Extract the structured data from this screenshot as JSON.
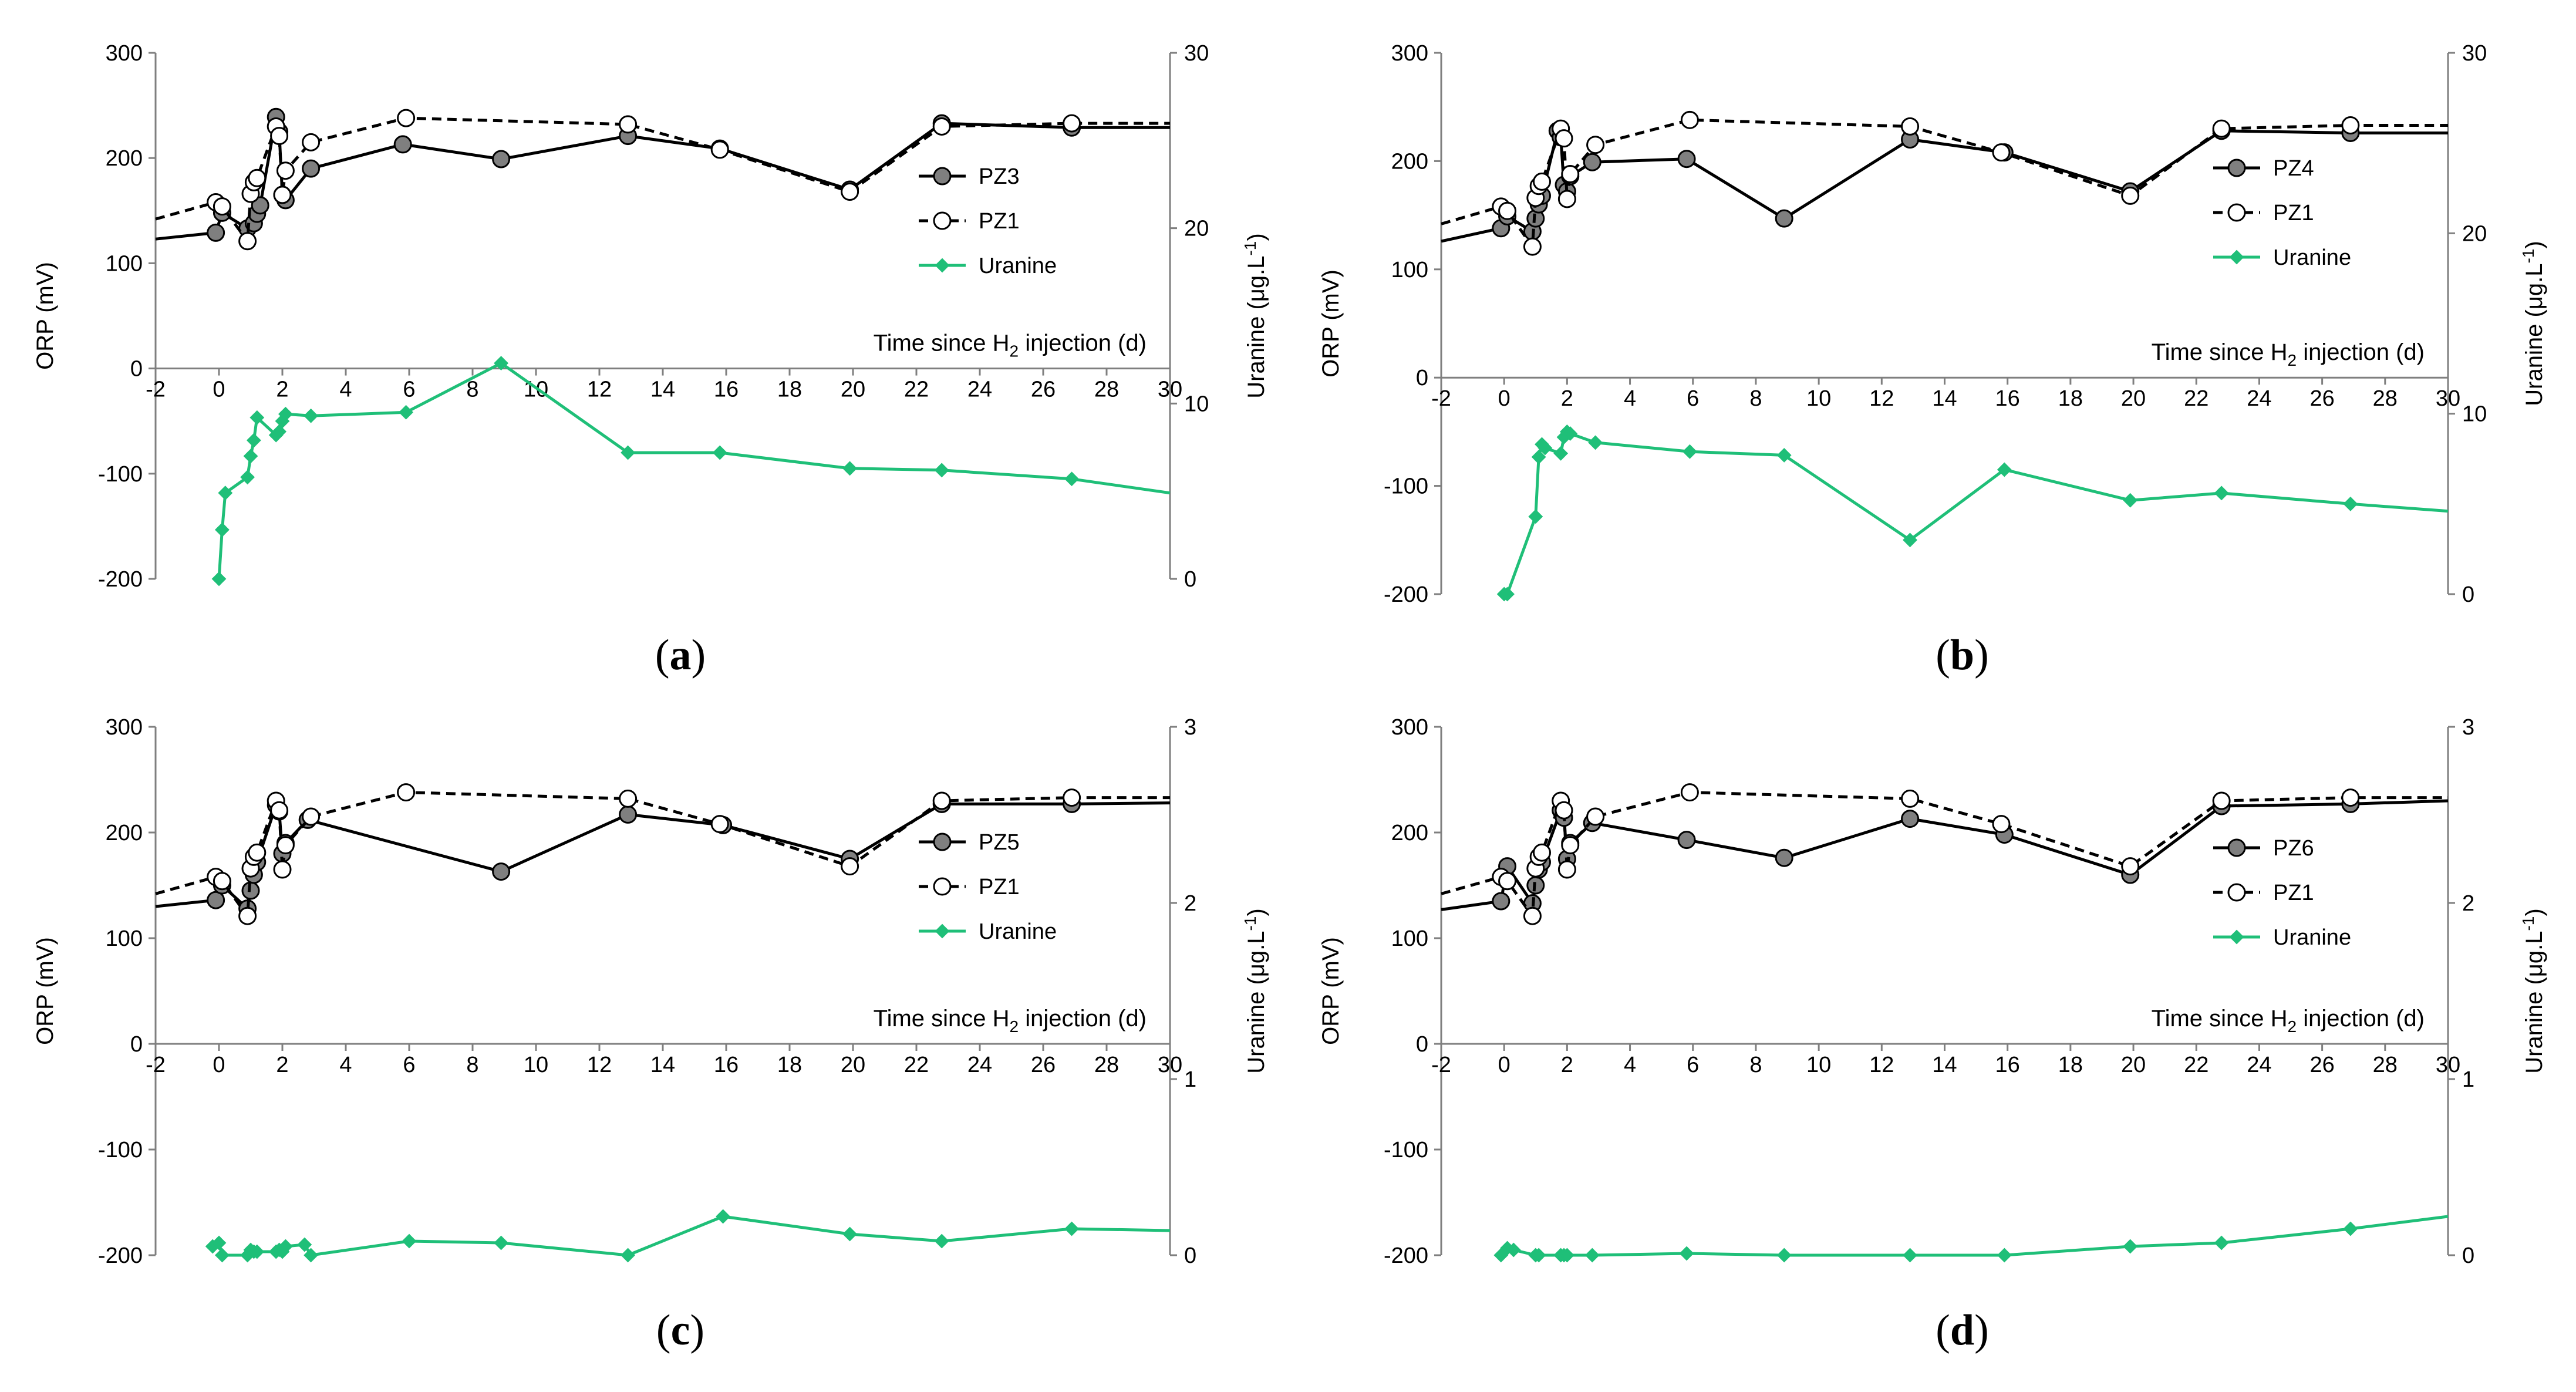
{
  "figure": {
    "colors": {
      "pz": "#000000",
      "pz_marker": "#7f7f7f",
      "pz1_marker": "#ffffff",
      "uranine": "#1fbf78",
      "axis": "#7f7f7f"
    }
  },
  "chart_data": [
    {
      "type": "line",
      "caption": "a",
      "xlabel": "Time since H",
      "xlabel_sub": "2",
      "xlabel_tail": " injection (d)",
      "ylabel": "ORP (mV)",
      "y2label": "Uranine (μg.L",
      "y2label_sup": "-1",
      "xlim": [
        -2,
        30
      ],
      "xticks": [
        "-2",
        "0",
        "2",
        "4",
        "6",
        "8",
        "10",
        "12",
        "14",
        "16",
        "18",
        "20",
        "22",
        "24",
        "26",
        "28",
        "30"
      ],
      "ylim": [
        -200,
        300
      ],
      "yticks": [
        "300",
        "200",
        "100",
        "0",
        "-100",
        "-200"
      ],
      "y2lim": [
        0,
        30
      ],
      "y2ticks": [
        "30",
        "20",
        "10",
        "0"
      ],
      "series": [
        {
          "name": "PZ3",
          "axis": "left",
          "style": "solid-filled",
          "x": [
            -2,
            -0.1,
            0.1,
            0.9,
            1.1,
            1.2,
            1.3,
            1.8,
            1.9,
            2.0,
            2.1,
            2.9,
            5.8,
            8.9,
            12.9,
            15.8,
            19.9,
            22.8,
            26.9,
            30
          ],
          "y": [
            123,
            129,
            148,
            133,
            138,
            147,
            155,
            239,
            225,
            165,
            160,
            190,
            213,
            199,
            221,
            209,
            170,
            233,
            229,
            229
          ],
          "markers": [
            false,
            true,
            true,
            true,
            true,
            true,
            true,
            true,
            true,
            true,
            true,
            true,
            true,
            true,
            true,
            true,
            true,
            true,
            true,
            false
          ]
        },
        {
          "name": "PZ1",
          "axis": "left",
          "style": "dashed-open",
          "x": [
            -2,
            -0.1,
            0.1,
            0.9,
            1.0,
            1.1,
            1.2,
            1.8,
            1.9,
            2.0,
            2.1,
            2.9,
            5.9,
            12.9,
            15.8,
            19.9,
            22.8,
            26.9,
            30
          ],
          "y": [
            142,
            158,
            154,
            121,
            166,
            177,
            181,
            230,
            221,
            165,
            188,
            215,
            238,
            232,
            208,
            168,
            230,
            233,
            233
          ],
          "markers": [
            false,
            true,
            true,
            true,
            true,
            true,
            true,
            true,
            true,
            true,
            true,
            true,
            true,
            true,
            true,
            true,
            true,
            true,
            false
          ]
        },
        {
          "name": "Uranine",
          "axis": "right",
          "style": "green-diamond",
          "x": [
            0,
            0.1,
            0.2,
            0.9,
            1.0,
            1.1,
            1.2,
            1.8,
            1.9,
            2.0,
            2.1,
            2.9,
            5.9,
            8.9,
            12.9,
            15.8,
            19.9,
            22.8,
            26.9,
            30
          ],
          "y": [
            0,
            2.8,
            4.9,
            5.8,
            7.0,
            7.9,
            9.2,
            8.2,
            8.4,
            9.0,
            9.4,
            9.3,
            9.5,
            12.3,
            7.2,
            7.2,
            6.3,
            6.2,
            5.7,
            4.9
          ],
          "markers": [
            true,
            true,
            true,
            true,
            true,
            true,
            true,
            true,
            true,
            true,
            true,
            true,
            true,
            true,
            true,
            true,
            true,
            true,
            true,
            false
          ]
        }
      ]
    },
    {
      "type": "line",
      "caption": "b",
      "xlabel": "Time since H",
      "xlabel_sub": "2",
      "xlabel_tail": " injection (d)",
      "ylabel": "ORP (mV)",
      "y2label": "Uranine (μg.L",
      "y2label_sup": "-1",
      "xlim": [
        -2,
        30
      ],
      "xticks": [
        "-2",
        "0",
        "2",
        "4",
        "6",
        "8",
        "10",
        "12",
        "14",
        "16",
        "18",
        "20",
        "22",
        "24",
        "26",
        "28",
        "30"
      ],
      "ylim": [
        -200,
        300
      ],
      "yticks": [
        "300",
        "200",
        "100",
        "0",
        "-100",
        "-200"
      ],
      "y2lim": [
        0,
        30
      ],
      "y2ticks": [
        "30",
        "20",
        "10",
        "0"
      ],
      "series": [
        {
          "name": "PZ4",
          "axis": "left",
          "style": "solid-filled",
          "x": [
            -2,
            -0.1,
            0.1,
            0.9,
            1.0,
            1.1,
            1.2,
            1.7,
            1.8,
            1.9,
            2.0,
            2.1,
            2.8,
            5.8,
            8.9,
            12.9,
            15.9,
            19.9,
            22.8,
            26.9,
            30
          ],
          "y": [
            126,
            138,
            149,
            135,
            147,
            160,
            168,
            228,
            222,
            178,
            172,
            186,
            199,
            202,
            147,
            220,
            208,
            172,
            228,
            226,
            226
          ],
          "markers": [
            false,
            true,
            true,
            true,
            true,
            true,
            true,
            true,
            true,
            true,
            true,
            true,
            true,
            true,
            true,
            true,
            true,
            true,
            true,
            true,
            false
          ]
        },
        {
          "name": "PZ1",
          "axis": "left",
          "style": "dashed-open",
          "x": [
            -2,
            -0.1,
            0.1,
            0.9,
            1.0,
            1.1,
            1.2,
            1.8,
            1.9,
            2.0,
            2.1,
            2.9,
            5.9,
            12.9,
            15.8,
            19.9,
            22.8,
            26.9,
            30
          ],
          "y": [
            142,
            158,
            154,
            121,
            166,
            177,
            181,
            230,
            221,
            165,
            188,
            215,
            238,
            232,
            208,
            168,
            230,
            233,
            233
          ],
          "markers": [
            false,
            true,
            true,
            true,
            true,
            true,
            true,
            true,
            true,
            true,
            true,
            true,
            true,
            true,
            true,
            true,
            true,
            true,
            false
          ]
        },
        {
          "name": "Uranine",
          "axis": "right",
          "style": "green-diamond",
          "x": [
            0,
            0.1,
            1.0,
            1.1,
            1.2,
            1.3,
            1.8,
            1.9,
            2.0,
            2.1,
            2.9,
            5.9,
            8.9,
            12.9,
            15.9,
            19.9,
            22.8,
            26.9,
            30
          ],
          "y": [
            0,
            0,
            4.3,
            7.6,
            8.3,
            8.1,
            7.8,
            8.7,
            9.0,
            8.9,
            8.4,
            7.9,
            7.7,
            3.0,
            6.9,
            5.2,
            5.6,
            5.0,
            4.6
          ],
          "markers": [
            true,
            true,
            true,
            true,
            true,
            true,
            true,
            true,
            true,
            true,
            true,
            true,
            true,
            true,
            true,
            true,
            true,
            true,
            false
          ]
        }
      ]
    },
    {
      "type": "line",
      "caption": "c",
      "xlabel": "Time since H",
      "xlabel_sub": "2",
      "xlabel_tail": " injection (d)",
      "ylabel": "ORP (mV)",
      "y2label": "Uranine (μg.L",
      "y2label_sup": "-1",
      "xlim": [
        -2,
        30
      ],
      "xticks": [
        "-2",
        "0",
        "2",
        "4",
        "6",
        "8",
        "10",
        "12",
        "14",
        "16",
        "18",
        "20",
        "22",
        "24",
        "26",
        "28",
        "30"
      ],
      "ylim": [
        -200,
        300
      ],
      "yticks": [
        "300",
        "200",
        "100",
        "0",
        "-100",
        "-200"
      ],
      "y2lim": [
        0,
        3
      ],
      "y2ticks": [
        "3",
        "2",
        "1",
        "0"
      ],
      "series": [
        {
          "name": "PZ5",
          "axis": "left",
          "style": "solid-filled",
          "x": [
            -2,
            -0.1,
            0.1,
            0.9,
            1.0,
            1.1,
            1.2,
            1.8,
            1.9,
            2.0,
            2.1,
            2.8,
            8.9,
            12.9,
            15.9,
            19.9,
            22.8,
            26.9,
            30
          ],
          "y": [
            130,
            136,
            150,
            128,
            145,
            160,
            172,
            226,
            220,
            180,
            190,
            212,
            163,
            217,
            207,
            175,
            227,
            227,
            228
          ],
          "markers": [
            false,
            true,
            true,
            true,
            true,
            true,
            true,
            true,
            true,
            true,
            true,
            true,
            true,
            true,
            true,
            true,
            true,
            true,
            false
          ]
        },
        {
          "name": "PZ1",
          "axis": "left",
          "style": "dashed-open",
          "x": [
            -2,
            -0.1,
            0.1,
            0.9,
            1.0,
            1.1,
            1.2,
            1.8,
            1.9,
            2.0,
            2.1,
            2.9,
            5.9,
            12.9,
            15.8,
            19.9,
            22.8,
            26.9,
            30
          ],
          "y": [
            142,
            158,
            154,
            121,
            166,
            177,
            181,
            230,
            221,
            165,
            188,
            215,
            238,
            232,
            208,
            168,
            230,
            233,
            233
          ],
          "markers": [
            false,
            true,
            true,
            true,
            true,
            true,
            true,
            true,
            true,
            true,
            true,
            true,
            true,
            true,
            true,
            true,
            true,
            true,
            false
          ]
        },
        {
          "name": "Uranine",
          "axis": "right",
          "style": "green-diamond",
          "x": [
            -0.2,
            0,
            0.1,
            0.9,
            1.0,
            1.1,
            1.2,
            1.8,
            1.9,
            2.0,
            2.1,
            2.7,
            2.9,
            6.0,
            8.9,
            12.9,
            15.9,
            19.9,
            22.8,
            26.9,
            30
          ],
          "y": [
            0.05,
            0.07,
            0.0,
            0.0,
            0.03,
            0.02,
            0.02,
            0.02,
            0.03,
            0.02,
            0.05,
            0.06,
            0.0,
            0.08,
            0.07,
            0.0,
            0.22,
            0.12,
            0.08,
            0.15,
            0.14
          ],
          "markers": [
            true,
            true,
            true,
            true,
            true,
            true,
            true,
            true,
            true,
            true,
            true,
            true,
            true,
            true,
            true,
            true,
            true,
            true,
            true,
            true,
            false
          ]
        }
      ]
    },
    {
      "type": "line",
      "caption": "d",
      "xlabel": "Time since H",
      "xlabel_sub": "2",
      "xlabel_tail": " injection (d)",
      "ylabel": "ORP (mV)",
      "y2label": "Uranine (μg.L",
      "y2label_sup": "-1",
      "xlim": [
        -2,
        30
      ],
      "xticks": [
        "-2",
        "0",
        "2",
        "4",
        "6",
        "8",
        "10",
        "12",
        "14",
        "16",
        "18",
        "20",
        "22",
        "24",
        "26",
        "28",
        "30"
      ],
      "ylim": [
        -200,
        300
      ],
      "yticks": [
        "300",
        "200",
        "100",
        "0",
        "-100",
        "-200"
      ],
      "y2lim": [
        0,
        3
      ],
      "y2ticks": [
        "3",
        "2",
        "1",
        "0"
      ],
      "series": [
        {
          "name": "PZ6",
          "axis": "left",
          "style": "solid-filled",
          "x": [
            -2,
            -0.1,
            0.1,
            0.9,
            1.0,
            1.1,
            1.2,
            1.8,
            1.9,
            2.0,
            2.1,
            2.8,
            5.8,
            8.9,
            12.9,
            15.9,
            19.9,
            22.8,
            26.9,
            30
          ],
          "y": [
            127,
            135,
            168,
            133,
            150,
            165,
            172,
            221,
            214,
            175,
            190,
            209,
            193,
            176,
            213,
            198,
            160,
            225,
            227,
            230
          ],
          "markers": [
            false,
            true,
            true,
            true,
            true,
            true,
            true,
            true,
            true,
            true,
            true,
            true,
            true,
            true,
            true,
            true,
            true,
            true,
            true,
            false
          ]
        },
        {
          "name": "PZ1",
          "axis": "left",
          "style": "dashed-open",
          "x": [
            -2,
            -0.1,
            0.1,
            0.9,
            1.0,
            1.1,
            1.2,
            1.8,
            1.9,
            2.0,
            2.1,
            2.9,
            5.9,
            12.9,
            15.8,
            19.9,
            22.8,
            26.9,
            30
          ],
          "y": [
            142,
            158,
            154,
            121,
            166,
            177,
            181,
            230,
            221,
            165,
            188,
            215,
            238,
            232,
            208,
            168,
            230,
            233,
            233
          ],
          "markers": [
            false,
            true,
            true,
            true,
            true,
            true,
            true,
            true,
            true,
            true,
            true,
            true,
            true,
            true,
            true,
            true,
            true,
            true,
            false
          ]
        },
        {
          "name": "Uranine",
          "axis": "right",
          "style": "green-diamond",
          "x": [
            -0.1,
            0.1,
            0.3,
            1.0,
            1.1,
            1.8,
            1.9,
            2.0,
            2.8,
            5.8,
            8.9,
            12.9,
            15.9,
            19.9,
            22.8,
            26.9,
            30
          ],
          "y": [
            0.0,
            0.04,
            0.03,
            0.0,
            0.0,
            0.0,
            0.0,
            0.0,
            0.0,
            0.01,
            0.0,
            0.0,
            0.0,
            0.05,
            0.07,
            0.15,
            0.22
          ],
          "markers": [
            true,
            true,
            true,
            true,
            true,
            true,
            true,
            true,
            true,
            true,
            true,
            true,
            true,
            true,
            true,
            true,
            false
          ]
        }
      ]
    }
  ]
}
